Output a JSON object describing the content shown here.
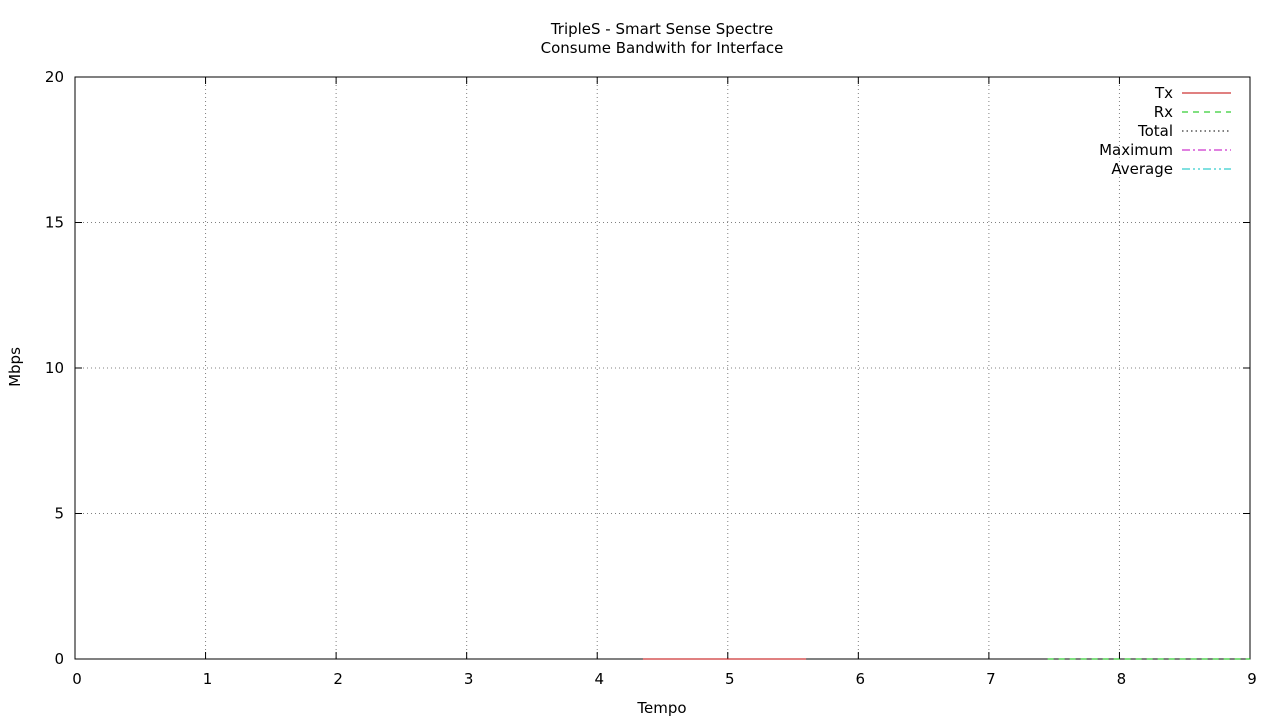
{
  "chart_data": {
    "type": "line",
    "title": "TripleS - Smart Sense Spectre",
    "subtitle": "Consume Bandwith for Interface",
    "xlabel": "Tempo",
    "ylabel": "Mbps",
    "xlim": [
      0,
      9
    ],
    "ylim": [
      0,
      20
    ],
    "x_ticks": [
      0,
      1,
      2,
      3,
      4,
      5,
      6,
      7,
      8,
      9
    ],
    "y_ticks": [
      0,
      5,
      10,
      15,
      20
    ],
    "grid": true,
    "legend_position": "top-right",
    "series": [
      {
        "name": "Tx",
        "color": "#c00000",
        "dash": "solid",
        "x": [
          4.35,
          5.6
        ],
        "y": [
          0,
          0
        ]
      },
      {
        "name": "Rx",
        "color": "#00c000",
        "dash": "dashed",
        "x": [
          7.45,
          9
        ],
        "y": [
          0,
          0
        ]
      },
      {
        "name": "Total",
        "color": "#000000",
        "dash": "dotted",
        "x": [],
        "y": []
      },
      {
        "name": "Maximum",
        "color": "#c000c0",
        "dash": "dashdot",
        "x": [],
        "y": []
      },
      {
        "name": "Average",
        "color": "#00c0c0",
        "dash": "dashdotdot",
        "x": [],
        "y": []
      }
    ]
  }
}
